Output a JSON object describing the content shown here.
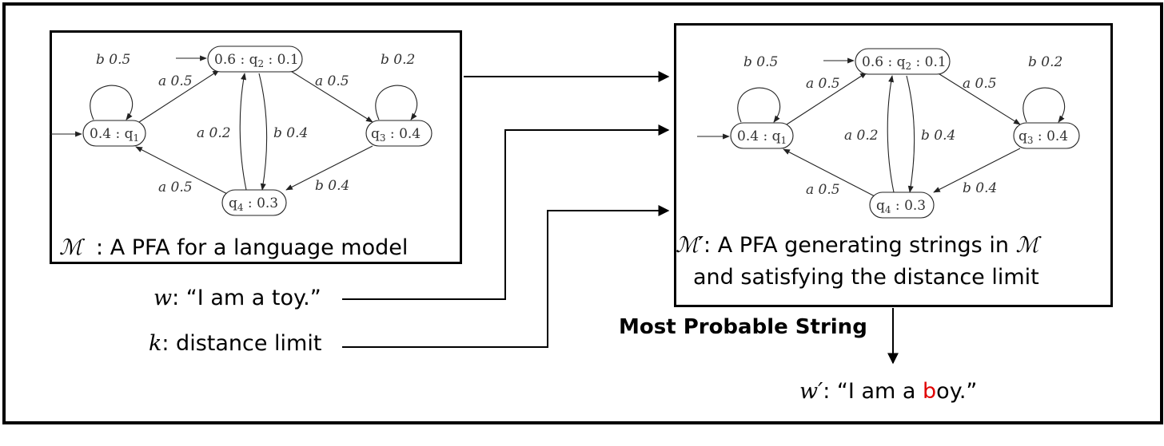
{
  "pfa": {
    "nodes": {
      "q1": {
        "text": "0.4 : q",
        "sub": "1"
      },
      "q2": {
        "text": "0.6 : q",
        "sub": "2",
        "tail": " : 0.1"
      },
      "q3": {
        "text": "q",
        "sub": "3",
        "tail": " : 0.4"
      },
      "q4": {
        "text": "q",
        "sub": "4",
        "tail": " : 0.3"
      }
    },
    "edges": {
      "loop_q1": "b 0.5",
      "q1_q2": "a 0.5",
      "q2_q3": "a 0.5",
      "loop_q3": "b 0.2",
      "q4_q2": "a 0.2",
      "q2_q4": "b 0.4",
      "q4_q1": "a 0.5",
      "q3_q4": "b 0.4"
    }
  },
  "captions": {
    "m_symbol": "ℳ",
    "m_text": "  : A PFA for a language model",
    "m_prime_symbol": "ℳ′",
    "m_prime_text_1": ": A PFA generating strings in ",
    "m_prime_text_1_symbol": "ℳ",
    "m_prime_text_2": "and satisfying the distance limit",
    "w_var": "w",
    "w_text": ": “I am a toy.”",
    "k_var": "k",
    "k_text": ": distance limit",
    "mps_label": "Most Probable String",
    "wprime_var": "w′",
    "wprime_text_1": ": “I am a ",
    "wprime_highlight": "b",
    "wprime_text_2": "oy.”"
  },
  "colors": {
    "highlight": "#e00000",
    "line": "#000000"
  }
}
